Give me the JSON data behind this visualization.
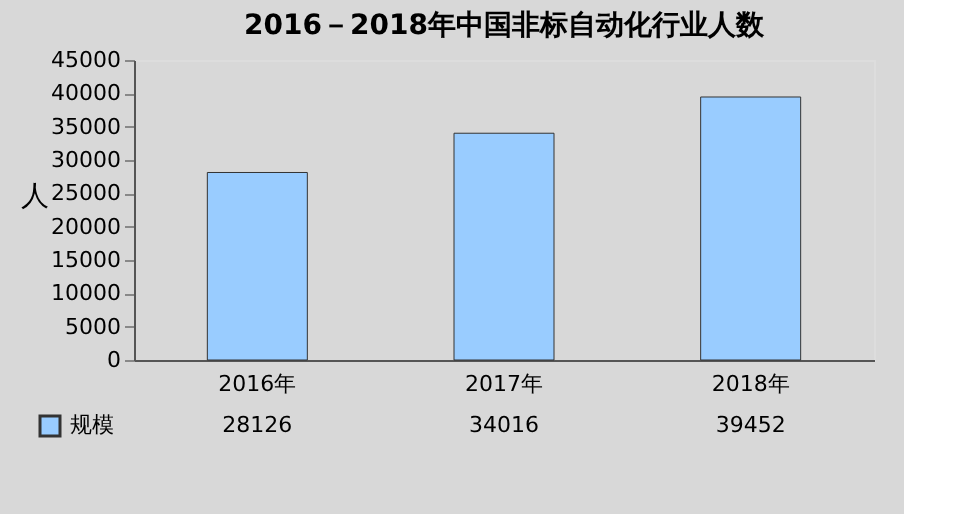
{
  "chart_data": {
    "type": "bar",
    "title": "2016－2018年中国非标自动化行业人数",
    "ylabel": "人",
    "categories": [
      "2016年",
      "2017年",
      "2018年"
    ],
    "series": [
      {
        "name": "规模",
        "color": "#99ccff",
        "values": [
          28126,
          34016,
          39452
        ]
      }
    ],
    "ylim": [
      0,
      45000
    ],
    "yticks": [
      0,
      5000,
      10000,
      15000,
      20000,
      25000,
      30000,
      35000,
      40000,
      45000
    ],
    "legend": "bottom left",
    "data_labels": true
  }
}
